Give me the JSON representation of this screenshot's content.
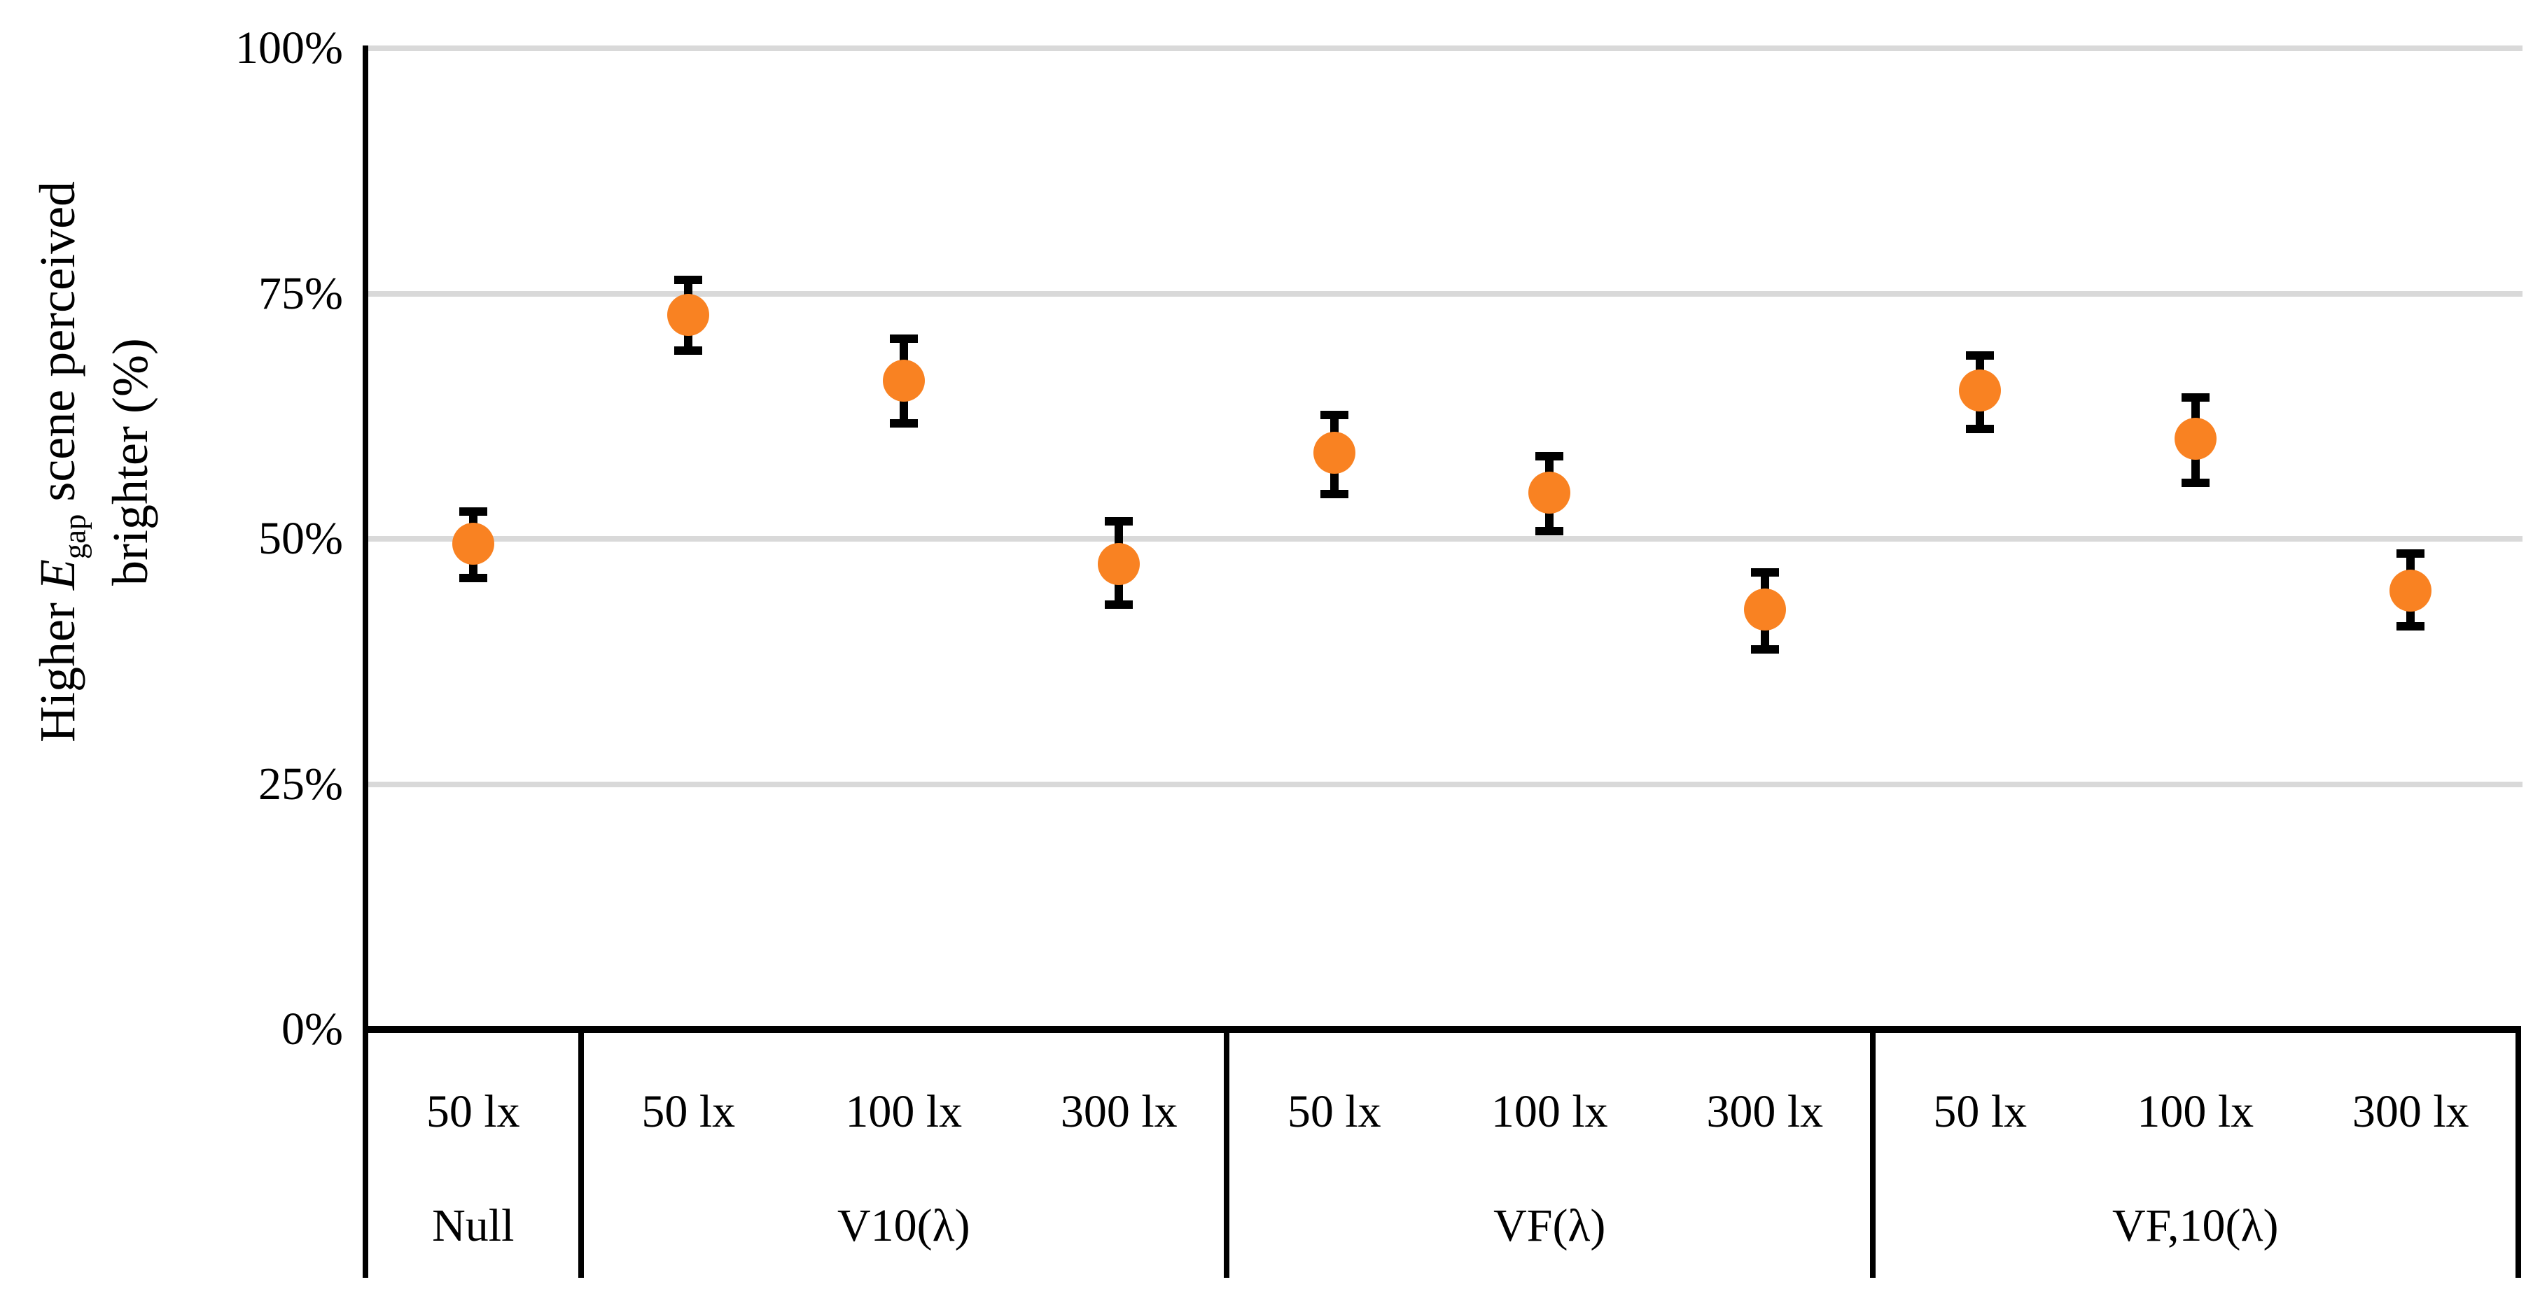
{
  "chart_data": {
    "type": "scatter",
    "title": "",
    "ylabel": {
      "pre": "Higher ",
      "var": "E",
      "sub": "gap",
      "post": " scene perceived",
      "line2": "brighter (%)"
    },
    "y_axis": {
      "min": 0,
      "max": 100,
      "ticks": [
        {
          "label": "100%",
          "value": 100
        },
        {
          "label": "75%",
          "value": 75
        },
        {
          "label": "50%",
          "value": 50
        },
        {
          "label": "25%",
          "value": 25
        },
        {
          "label": "0%",
          "value": 0
        }
      ],
      "gridlines": true,
      "gridline_color": "#D9D9D9"
    },
    "marker_color": "#F98222",
    "error_bar_color": "#000000",
    "legend": "none",
    "groups": [
      {
        "label": "Null",
        "points": [
          {
            "label": "50 lx",
            "value": 49.5,
            "err_up": 3.3,
            "err_down": 3.5
          }
        ]
      },
      {
        "label": "V10(λ)",
        "points": [
          {
            "label": "50 lx",
            "value": 72.8,
            "err_up": 3.6,
            "err_down": 3.6
          },
          {
            "label": "100 lx",
            "value": 66.1,
            "err_up": 4.3,
            "err_down": 4.3
          },
          {
            "label": "300 lx",
            "value": 47.4,
            "err_up": 4.4,
            "err_down": 4.1
          }
        ]
      },
      {
        "label": "VF(λ)",
        "points": [
          {
            "label": "50 lx",
            "value": 58.8,
            "err_up": 3.8,
            "err_down": 4.2
          },
          {
            "label": "100 lx",
            "value": 54.7,
            "err_up": 3.7,
            "err_down": 3.9
          },
          {
            "label": "300 lx",
            "value": 42.8,
            "err_up": 3.8,
            "err_down": 4.1
          }
        ]
      },
      {
        "label": "VF,10(λ)",
        "points": [
          {
            "label": "50 lx",
            "value": 65.1,
            "err_up": 3.6,
            "err_down": 3.9
          },
          {
            "label": "100 lx",
            "value": 60.2,
            "err_up": 4.2,
            "err_down": 4.5
          },
          {
            "label": "300 lx",
            "value": 44.7,
            "err_up": 3.8,
            "err_down": 3.6
          }
        ]
      }
    ]
  }
}
